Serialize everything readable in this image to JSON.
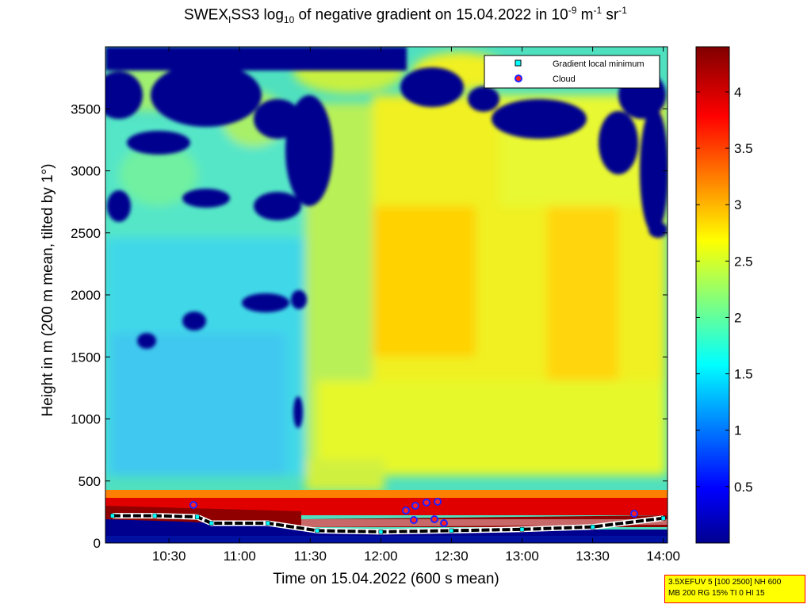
{
  "figure": {
    "title_main": "SWEX",
    "title_sub1": "I",
    "title_part2": "SS3 log",
    "title_sub2": "10",
    "title_part3": " of negative gradient on 15.04.2022 in 10",
    "title_sup1": "-9",
    "title_part4": " m",
    "title_sup2": "-1",
    "title_part5": " sr",
    "title_sup3": "-1"
  },
  "info_box": {
    "line1": "3.5XEFUV 5 [100 2500] NH 600",
    "line2": "MB 200 RG 15% TI 0 HI 15"
  },
  "chart_data": {
    "type": "heatmap",
    "xlabel": "Time on 15.04.2022 (600 s mean)",
    "ylabel": "Height in m (200 m mean, tilted by 1°)",
    "x_ticks": [
      "10:30",
      "11:00",
      "11:30",
      "12:00",
      "12:30",
      "13:00",
      "13:30",
      "14:00"
    ],
    "x_tick_hours": [
      10.5,
      11.0,
      11.5,
      12.0,
      12.5,
      13.0,
      13.5,
      14.0
    ],
    "xlim": [
      10.05,
      14.03
    ],
    "y_ticks": [
      0,
      500,
      1000,
      1500,
      2000,
      2500,
      3000,
      3500
    ],
    "ylim": [
      0,
      4000
    ],
    "colorbar": {
      "ticks": [
        "0.5",
        "1",
        "1.5",
        "2",
        "2.5",
        "3",
        "3.5",
        "4"
      ],
      "tick_values": [
        0.5,
        1,
        1.5,
        2,
        2.5,
        3,
        3.5,
        4
      ],
      "range": [
        0,
        4.4
      ],
      "colormap": "jet"
    },
    "legend": {
      "placement": "top-right",
      "entries": [
        {
          "label": "Gradient local minimum",
          "marker": "square",
          "color": "#00ffff"
        },
        {
          "label": "Cloud",
          "marker": "circle",
          "color": "#ff0000"
        }
      ]
    },
    "mixing_layer_m": [
      {
        "t": 10.1,
        "h": 220
      },
      {
        "t": 10.4,
        "h": 220
      },
      {
        "t": 10.7,
        "h": 210
      },
      {
        "t": 10.8,
        "h": 160
      },
      {
        "t": 11.2,
        "h": 160
      },
      {
        "t": 11.55,
        "h": 100
      },
      {
        "t": 12.0,
        "h": 90
      },
      {
        "t": 12.5,
        "h": 100
      },
      {
        "t": 13.0,
        "h": 110
      },
      {
        "t": 13.5,
        "h": 130
      },
      {
        "t": 14.0,
        "h": 200
      }
    ]
  }
}
